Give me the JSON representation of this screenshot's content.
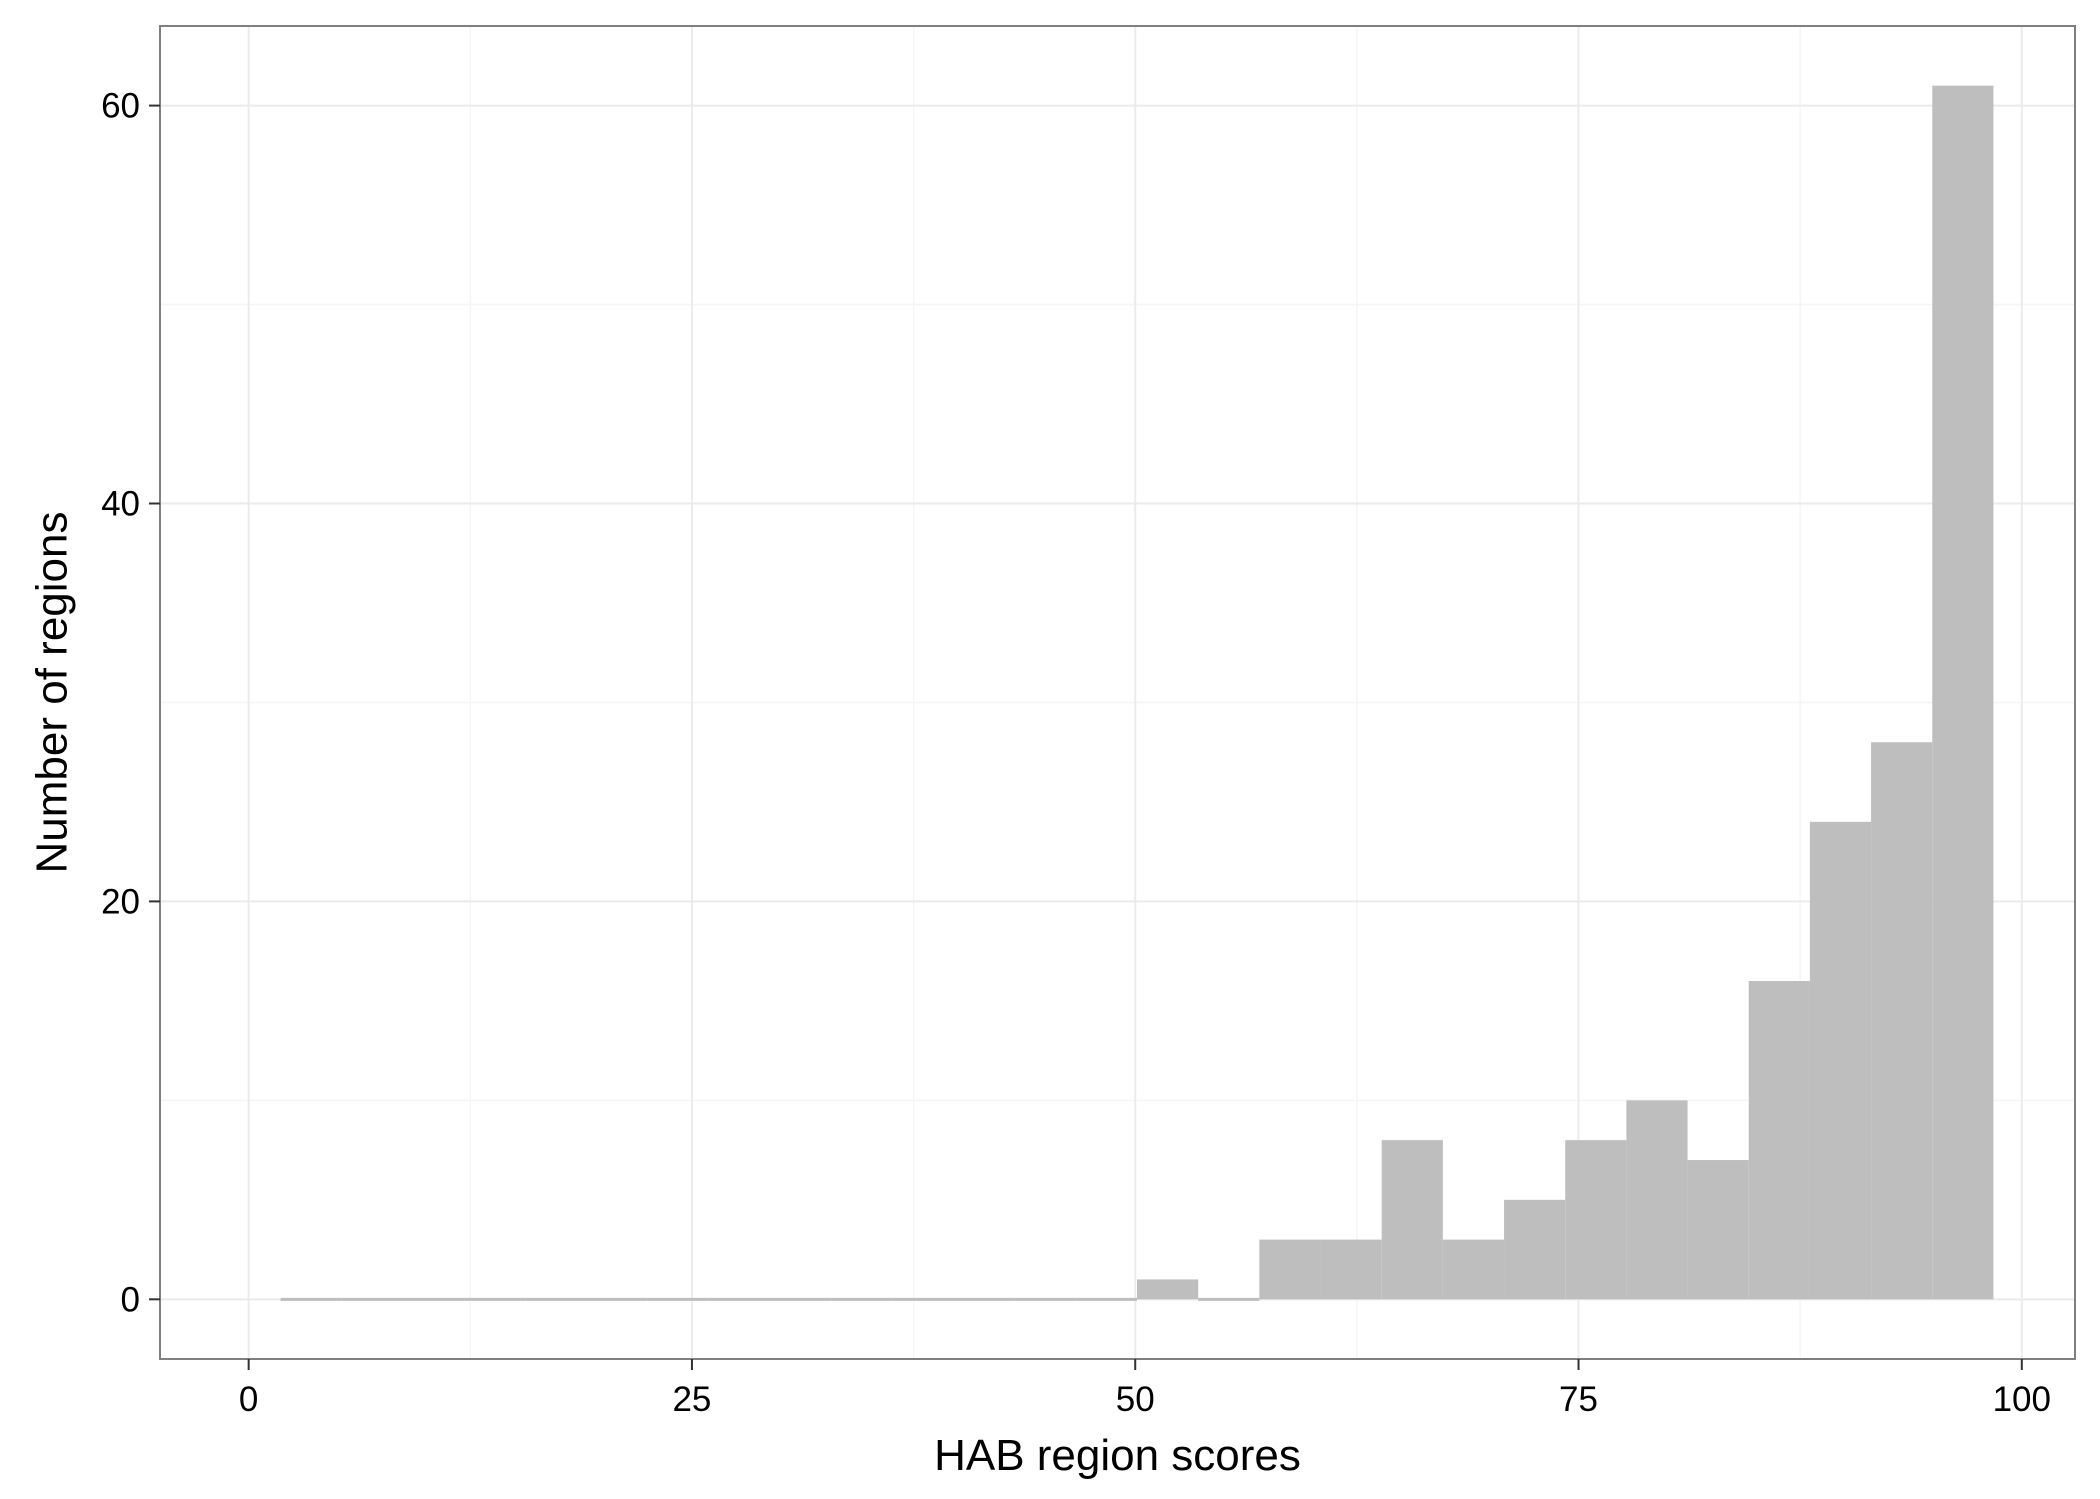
{
  "chart_data": {
    "type": "bar",
    "subtype": "histogram",
    "title": "",
    "xlabel": "HAB region scores",
    "ylabel": "Number of regions",
    "xlim": [
      -5,
      103
    ],
    "ylim": [
      -3,
      64
    ],
    "xticks": [
      0,
      25,
      50,
      75,
      100
    ],
    "xtick_labels": [
      "0",
      "25",
      "50",
      "75",
      "100"
    ],
    "yticks": [
      0,
      20,
      40,
      60
    ],
    "ytick_labels": [
      "0",
      "20",
      "40",
      "60"
    ],
    "grid": true,
    "legend": "none",
    "bins": {
      "x_start": [
        1.8,
        5.25,
        8.7,
        12.15,
        15.6,
        19.05,
        22.5,
        25.95,
        29.4,
        32.85,
        36.3,
        39.75,
        43.2,
        46.65,
        50.1,
        53.55,
        57.0,
        60.45,
        63.9,
        67.35,
        70.8,
        74.25,
        77.7,
        81.15,
        84.6,
        88.05,
        91.5,
        94.95
      ],
      "x_end": [
        5.25,
        8.7,
        12.15,
        15.6,
        19.05,
        22.5,
        25.95,
        29.4,
        32.85,
        36.3,
        39.75,
        43.2,
        46.65,
        50.1,
        53.55,
        57.0,
        60.45,
        63.9,
        67.35,
        70.8,
        74.25,
        77.7,
        81.15,
        84.6,
        88.05,
        91.5,
        94.95,
        98.4
      ],
      "counts": [
        0,
        0,
        0,
        0,
        0,
        0,
        0,
        0,
        0,
        0,
        0,
        0,
        0,
        0,
        1,
        0,
        3,
        3,
        8,
        3,
        5,
        8,
        10,
        7,
        16,
        24,
        28,
        61
      ]
    },
    "colors": {
      "bar_fill": "#bebebe",
      "panel_background": "#ffffff",
      "grid_major": "#ebebeb",
      "grid_minor": "#f5f5f5",
      "panel_border": "#7f7f7f",
      "tick_mark": "#333333"
    }
  }
}
